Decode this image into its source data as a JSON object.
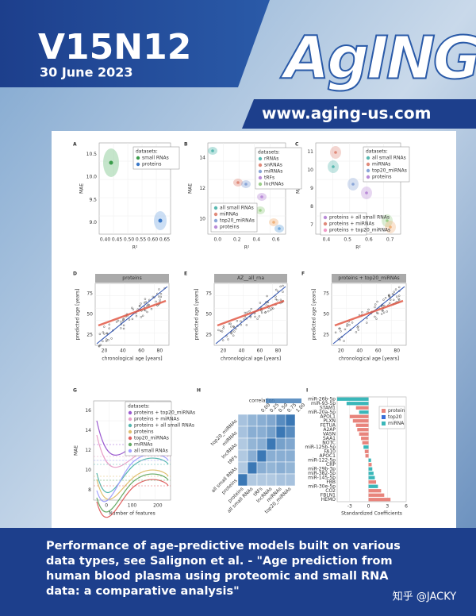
{
  "header": {
    "volume": "V15N12",
    "date": "30 June 2023",
    "logo": "AgING",
    "url": "www.aging-us.com"
  },
  "figure": {
    "A": {
      "letter": "A",
      "xlabel": "R²",
      "ylabel": "MAE",
      "xticks": [
        "0.40",
        "0.45",
        "0.50",
        "0.55",
        "0.60",
        "0.65"
      ],
      "yticks": [
        "10.5",
        "10.0",
        "9.5",
        "9.0"
      ],
      "legend_title": "datasets:",
      "legend": [
        "small RNAs",
        "proteins"
      ]
    },
    "B": {
      "letter": "B",
      "xlabel": "R²",
      "ylabel": "MAE",
      "xticks": [
        "0.0",
        "0.2",
        "0.4",
        "0.6"
      ],
      "yticks": [
        "14",
        "12",
        "10"
      ],
      "legend_title": "datasets:",
      "legend": [
        "rRNAs",
        "snRNAs",
        "miRNAs",
        "tRFs",
        "lncRNAs"
      ],
      "legend2": [
        "all small RNAs",
        "miRNAs",
        "top20_miRNAs",
        "proteins"
      ]
    },
    "C": {
      "letter": "C",
      "xlabel": "R²",
      "ylabel": "MAE",
      "xticks": [
        "0.4",
        "0.5",
        "0.6",
        "0.7"
      ],
      "yticks": [
        "11",
        "10",
        "9",
        "8",
        "7"
      ],
      "legend_title": "datasets:",
      "legend": [
        "all small RNAs",
        "miRNAs",
        "top20_miRNAs",
        "proteins"
      ],
      "legend2": [
        "proteins + all small RNAs",
        "proteins + miRNAs",
        "proteins + top20_miRNAs"
      ]
    },
    "D": {
      "letter": "D",
      "strip": "proteins",
      "xlabel": "chronological age [years]",
      "ylabel": "predicted age [years]",
      "xticks": [
        "20",
        "40",
        "60",
        "80"
      ],
      "yticks": [
        "75",
        "50",
        "25"
      ]
    },
    "E": {
      "letter": "E",
      "strip": "AZ__all_rna",
      "xlabel": "chronological age [years]",
      "ylabel": "predicted age [years]",
      "xticks": [
        "20",
        "40",
        "60",
        "80"
      ],
      "yticks": [
        "75",
        "50",
        "25"
      ]
    },
    "F": {
      "letter": "F",
      "strip": "proteins + top20_miRNAs",
      "xlabel": "chronological age [years]",
      "ylabel": "predicted age [years]",
      "xticks": [
        "20",
        "40",
        "60",
        "80"
      ],
      "yticks": [
        "75",
        "50",
        "25"
      ]
    },
    "G": {
      "letter": "G",
      "xlabel": "Number of features",
      "ylabel": "MAE",
      "xticks": [
        "0",
        "100",
        "200"
      ],
      "yticks": [
        "16",
        "14",
        "12",
        "10",
        "8"
      ],
      "legend_title": "datasets:",
      "legend": [
        "proteins + top20_miRNAs",
        "proteins + miRNAs",
        "proteins + all small RNAs",
        "proteins",
        "top20_miRNAs",
        "miRNAs",
        "all small RNAs"
      ]
    },
    "H": {
      "letter": "H",
      "colorbar_title": "correlation",
      "colorbar_ticks": [
        "0.00",
        "0.25",
        "0.50",
        "0.75",
        "1.00"
      ],
      "rows": [
        "top20_miRNAs",
        "miRNAs",
        "lncRNAs",
        "tRFs",
        "all small RNAs",
        "proteins"
      ],
      "cols": [
        "proteins",
        "all small RNAs",
        "tRFs",
        "lncRNAs",
        "miRNAs",
        "top20_miRNAs"
      ],
      "matrix": [
        [
          0.45,
          0.55,
          0.6,
          0.65,
          0.85,
          1
        ],
        [
          0.45,
          0.6,
          0.6,
          0.7,
          1,
          0.85
        ],
        [
          0.4,
          0.55,
          0.6,
          1,
          0.7,
          0.65
        ],
        [
          0.4,
          0.6,
          1,
          0.6,
          0.6,
          0.6
        ],
        [
          0.4,
          1,
          0.6,
          0.55,
          0.6,
          0.55
        ],
        [
          1,
          0.4,
          0.4,
          0.4,
          0.45,
          0.45
        ]
      ]
    },
    "I": {
      "letter": "I",
      "xlabel": "Standardized Coefficients",
      "xticks": [
        -3,
        0,
        3,
        6
      ],
      "xlim": [
        -5,
        6
      ],
      "legend": [
        "protein",
        "top20",
        "miRNA"
      ],
      "legend_colors": [
        "#e8847c",
        "#3a6fd8",
        "#3ab7b9"
      ],
      "features": [
        "miR-26b-5p",
        "miR-93-5p",
        "STAM1",
        "miR-20a-5p",
        "APOL1",
        "PLXN",
        "FETUA",
        "A2AP",
        "VASN",
        "SAA1",
        "NOTC",
        "miR-125b-5p",
        "FA10",
        "APOC1",
        "miR-122-5p",
        "CRP",
        "miR-29b-3p",
        "miR-382-5p",
        "miR-145-5p",
        "FBB",
        "miR-30e-5p",
        "CO2",
        "FBLN1",
        "HEMO"
      ],
      "coefficients": [
        -5,
        -3.5,
        -2,
        -1.5,
        -3,
        -2.5,
        -2,
        -1.8,
        -1.5,
        -1.2,
        -1,
        -0.8,
        -0.6,
        -0.5,
        0.4,
        0.5,
        0.6,
        0.8,
        1,
        1.2,
        1.5,
        2,
        2.5,
        3.5
      ],
      "kinds": [
        2,
        2,
        0,
        2,
        0,
        0,
        0,
        0,
        0,
        0,
        0,
        2,
        0,
        0,
        2,
        0,
        2,
        2,
        2,
        0,
        2,
        0,
        0,
        0
      ]
    }
  },
  "caption": [
    "Performance of age-predictive models built on various",
    "data types, see Salignon et al. - \"Age prediction from",
    "human blood plasma using proteomic and small RNA",
    "data: a comparative analysis\""
  ],
  "watermark": "知乎 @JACKY"
}
